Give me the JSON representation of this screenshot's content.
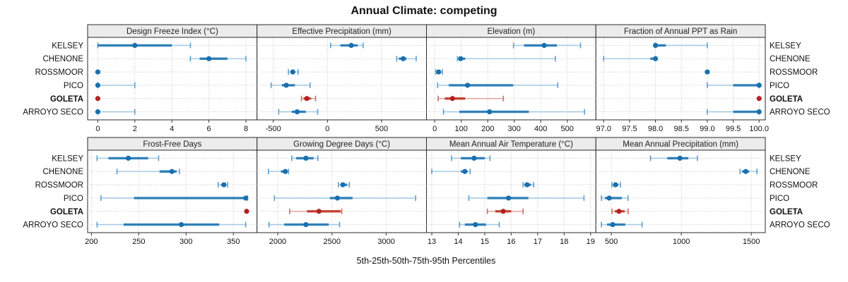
{
  "title": "Annual Climate: competing",
  "caption": "5th-25th-50th-75th-95th Percentiles",
  "colors": {
    "blue_point": "#1a6fae",
    "blue_box": "#2077b4",
    "blue_range": "#a6cbe3",
    "blue_cap": "#5ea0cc",
    "red_point": "#b22222",
    "red_box": "#c0392b",
    "red_range": "#e0a49e",
    "red_cap": "#cd6d66",
    "strip_bg": "#ececec",
    "panel_border": "#2a2a2a",
    "grid": "#c4c4c4",
    "tick": "#333333"
  },
  "sites": [
    "KELSEY",
    "CHENONE",
    "ROSSMOOR",
    "PICO",
    "GOLETA",
    "ARROYO SECO"
  ],
  "highlight_site": "GOLETA",
  "chart_data": {
    "type": "dotplot",
    "title": "Annual Climate: competing",
    "xlabel": "5th-25th-50th-75th-95th Percentiles",
    "percentiles": [
      "5th",
      "25th",
      "50th",
      "75th",
      "95th"
    ],
    "layout": "2 rows x 4 columns of panels, shared site axis, site labels on both sides, dotted grid",
    "panels": [
      {
        "label": "Design Freeze Index (°C)",
        "row": 0,
        "col": 0,
        "xlim": [
          -0.55,
          8.6
        ],
        "ticks": [
          0,
          2,
          4,
          6,
          8
        ],
        "tick_labels": [
          "0",
          "2",
          "4",
          "6",
          "8"
        ],
        "values": [
          [
            0,
            0,
            2,
            4,
            5
          ],
          [
            5,
            5.5,
            6,
            7,
            8
          ],
          [
            0,
            0,
            0,
            0,
            0
          ],
          [
            0,
            0,
            0,
            0,
            2
          ],
          [
            0,
            0,
            0,
            0,
            0
          ],
          [
            0,
            0,
            0,
            0,
            2
          ]
        ]
      },
      {
        "label": "Effective Precipitation (mm)",
        "row": 0,
        "col": 1,
        "xlim": [
          -650,
          915
        ],
        "ticks": [
          -500,
          0,
          500
        ],
        "tick_labels": [
          "-500",
          "0",
          "500"
        ],
        "values": [
          [
            30,
            120,
            220,
            280,
            330
          ],
          [
            640,
            660,
            700,
            730,
            820
          ],
          [
            -360,
            -340,
            -320,
            -300,
            -270
          ],
          [
            -520,
            -420,
            -380,
            -300,
            -160
          ],
          [
            -240,
            -220,
            -190,
            -150,
            -110
          ],
          [
            -450,
            -330,
            -280,
            -200,
            -90
          ]
        ]
      },
      {
        "label": "Elevation (m)",
        "row": 0,
        "col": 2,
        "xlim": [
          -31,
          608
        ],
        "ticks": [
          0,
          100,
          200,
          300,
          400,
          500
        ],
        "tick_labels": [
          "0",
          "100",
          "200",
          "300",
          "400",
          "500"
        ],
        "values": [
          [
            297,
            337,
            413,
            461,
            550
          ],
          [
            86,
            93,
            98,
            115,
            455
          ],
          [
            4,
            8,
            15,
            22,
            29
          ],
          [
            11,
            53,
            124,
            296,
            464
          ],
          [
            13,
            38,
            67,
            115,
            259
          ],
          [
            33,
            93,
            207,
            355,
            565
          ]
        ]
      },
      {
        "label": "Fraction of Annual PPT as Rain",
        "row": 0,
        "col": 3,
        "xlim": [
          96.85,
          100.12
        ],
        "ticks": [
          97,
          97.5,
          98,
          98.5,
          99,
          99.5,
          100
        ],
        "tick_labels": [
          "97.0",
          "97.5",
          "98.0",
          "98.5",
          "99.0",
          "99.5",
          "100.0"
        ],
        "values": [
          [
            98,
            98,
            98,
            98.2,
            99
          ],
          [
            97,
            97.9,
            98,
            98,
            98
          ],
          [
            99,
            99,
            99,
            99,
            99
          ],
          [
            99,
            99.5,
            100,
            100,
            100
          ],
          [
            100,
            100,
            100,
            100,
            100
          ],
          [
            99,
            99.5,
            100,
            100,
            100
          ]
        ]
      },
      {
        "label": "Frost-Free Days",
        "row": 1,
        "col": 0,
        "xlim": [
          196,
          375
        ],
        "ticks": [
          200,
          250,
          300,
          350
        ],
        "tick_labels": [
          "200",
          "250",
          "300",
          "350"
        ],
        "values": [
          [
            206,
            218,
            239,
            260,
            271
          ],
          [
            227,
            272,
            285,
            290,
            293
          ],
          [
            334,
            337,
            340,
            342,
            344
          ],
          [
            210,
            245,
            363,
            365,
            365
          ],
          [
            364,
            364,
            364,
            364,
            364
          ],
          [
            206,
            234,
            295,
            335,
            363
          ]
        ]
      },
      {
        "label": "Growing Degree Days (°C)",
        "row": 1,
        "col": 1,
        "xlim": [
          1810,
          3370
        ],
        "ticks": [
          2000,
          2500,
          3000
        ],
        "tick_labels": [
          "2000",
          "2500",
          "3000"
        ],
        "values": [
          [
            2130,
            2170,
            2260,
            2330,
            2370
          ],
          [
            1915,
            2030,
            2070,
            2090,
            2100
          ],
          [
            2560,
            2580,
            2600,
            2640,
            2660
          ],
          [
            1970,
            2480,
            2550,
            2690,
            3270
          ],
          [
            2110,
            2270,
            2380,
            2580,
            2590
          ],
          [
            1920,
            2060,
            2260,
            2470,
            2570
          ]
        ]
      },
      {
        "label": "Mean Annual Air Temperature (°C)",
        "row": 1,
        "col": 2,
        "xlim": [
          12.8,
          19.2
        ],
        "ticks": [
          13,
          14,
          15,
          16,
          17,
          18,
          19
        ],
        "tick_labels": [
          "13",
          "14",
          "15",
          "16",
          "17",
          "18",
          "19"
        ],
        "values": [
          [
            13.75,
            14.1,
            14.6,
            15.0,
            15.2
          ],
          [
            13.0,
            14.1,
            14.25,
            14.35,
            14.45
          ],
          [
            16.45,
            16.5,
            16.6,
            16.75,
            16.85
          ],
          [
            14.4,
            15.1,
            15.9,
            16.65,
            18.75
          ],
          [
            15.1,
            15.4,
            15.7,
            16.0,
            16.45
          ],
          [
            14.05,
            14.25,
            14.65,
            15.05,
            15.55
          ]
        ]
      },
      {
        "label": "Mean Annual Precipitation (mm)",
        "row": 1,
        "col": 3,
        "xlim": [
          390,
          1600
        ],
        "ticks": [
          500,
          1000,
          1500
        ],
        "tick_labels": [
          "500",
          "1000",
          "1500"
        ],
        "values": [
          [
            780,
            900,
            990,
            1050,
            1115
          ],
          [
            1420,
            1435,
            1460,
            1485,
            1540
          ],
          [
            505,
            515,
            530,
            550,
            565
          ],
          [
            430,
            455,
            485,
            575,
            620
          ],
          [
            505,
            525,
            555,
            595,
            620
          ],
          [
            430,
            470,
            510,
            600,
            720
          ]
        ]
      }
    ]
  }
}
